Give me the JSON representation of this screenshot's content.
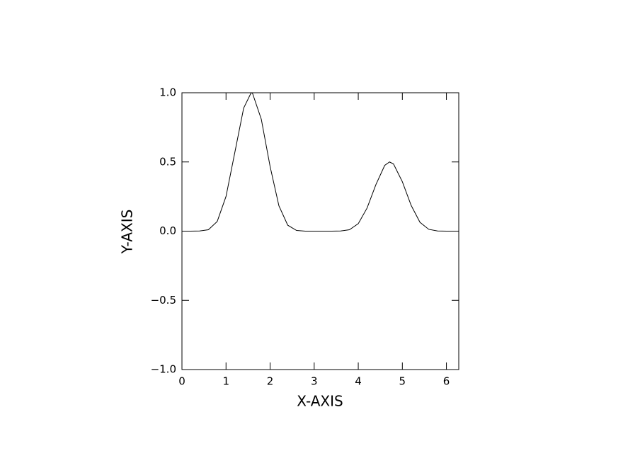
{
  "chart_data": {
    "type": "line",
    "x_label": "X-AXIS",
    "y_label": "Y-AXIS",
    "x": [
      0,
      0.2,
      0.4,
      0.6,
      0.8,
      1.0,
      1.2,
      1.4,
      1.57,
      1.6,
      1.8,
      2.0,
      2.2,
      2.4,
      2.6,
      2.8,
      3.0,
      3.2,
      3.4,
      3.6,
      3.8,
      4.0,
      4.2,
      4.4,
      4.6,
      4.71,
      4.8,
      5.0,
      5.2,
      5.4,
      5.6,
      5.8,
      6.0,
      6.2,
      6.28
    ],
    "values": [
      0,
      0,
      0.001,
      0.01,
      0.07,
      0.251,
      0.569,
      0.889,
      1.0,
      0.997,
      0.809,
      0.467,
      0.183,
      0.043,
      0.005,
      0,
      0,
      0,
      0,
      0.001,
      0.01,
      0.054,
      0.167,
      0.336,
      0.475,
      0.5,
      0.485,
      0.357,
      0.186,
      0.064,
      0.013,
      0.001,
      0,
      0,
      0
    ],
    "color": "#000000",
    "xlim": [
      0,
      6.28
    ],
    "xticks": [
      0,
      1,
      2,
      3,
      4,
      5,
      6
    ],
    "ylim": [
      -1,
      1
    ],
    "yticks": [
      {
        "value": -1,
        "label": "−1.0"
      },
      {
        "value": -0.5,
        "label": "−0.5"
      },
      {
        "value": 0,
        "label": "0.0"
      },
      {
        "value": 0.5,
        "label": "0.5"
      },
      {
        "value": 1,
        "label": "1.0"
      }
    ],
    "grid": false
  }
}
